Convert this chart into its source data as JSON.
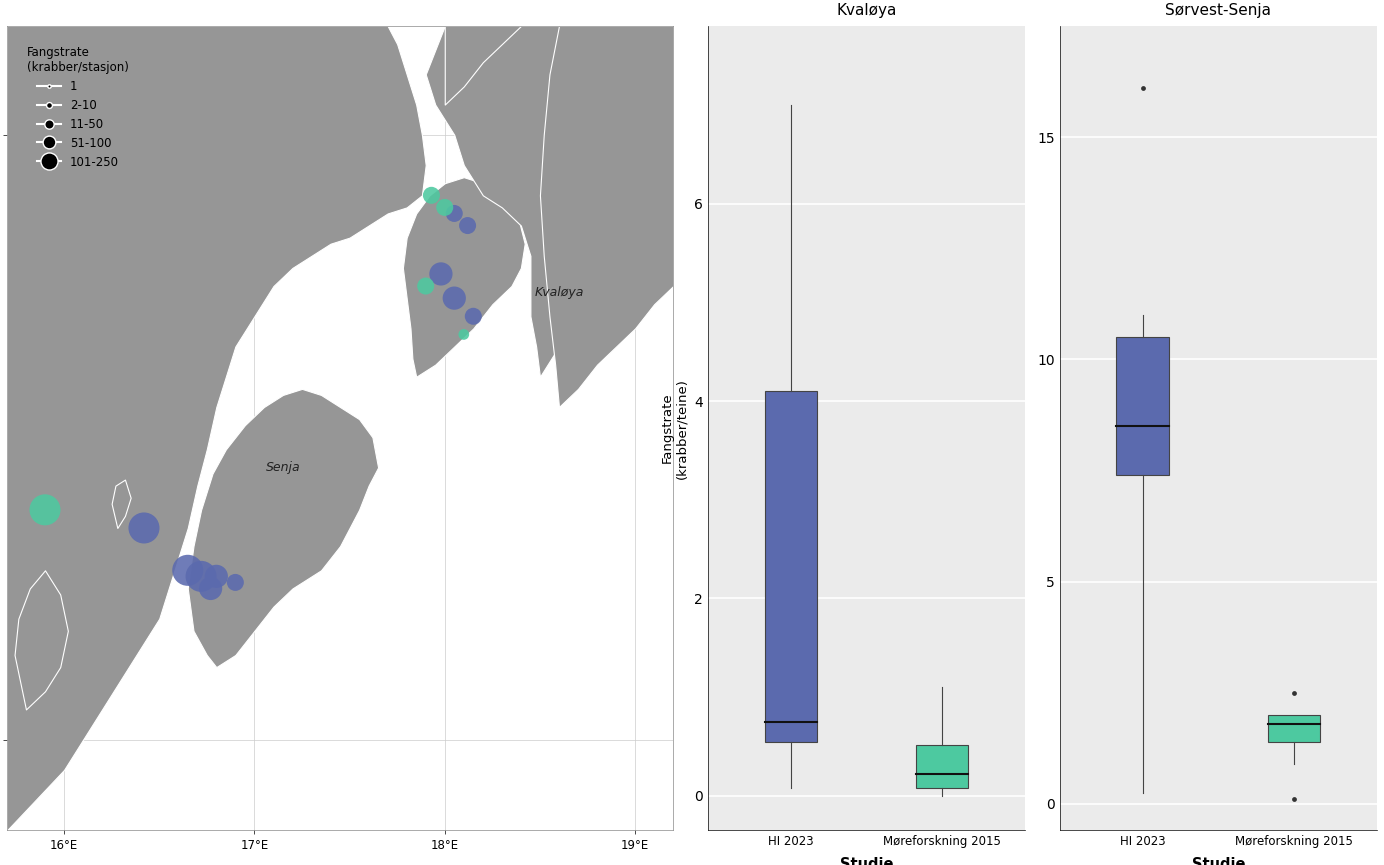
{
  "hi_color": "#5b6aae",
  "more_color": "#4dc9a0",
  "hi2023_points": [
    {
      "lon": 18.05,
      "lat": 69.87,
      "count": 30
    },
    {
      "lon": 18.12,
      "lat": 69.85,
      "count": 50
    },
    {
      "lon": 17.98,
      "lat": 69.77,
      "count": 80
    },
    {
      "lon": 18.05,
      "lat": 69.73,
      "count": 60
    },
    {
      "lon": 18.15,
      "lat": 69.7,
      "count": 40
    },
    {
      "lon": 16.42,
      "lat": 69.35,
      "count": 200
    },
    {
      "lon": 16.65,
      "lat": 69.28,
      "count": 120
    },
    {
      "lon": 16.72,
      "lat": 69.27,
      "count": 150
    },
    {
      "lon": 16.8,
      "lat": 69.27,
      "count": 100
    },
    {
      "lon": 16.77,
      "lat": 69.25,
      "count": 80
    },
    {
      "lon": 16.9,
      "lat": 69.26,
      "count": 30
    }
  ],
  "more2015_points": [
    {
      "lon": 17.93,
      "lat": 69.9,
      "count": 15
    },
    {
      "lon": 18.0,
      "lat": 69.88,
      "count": 20
    },
    {
      "lon": 17.9,
      "lat": 69.75,
      "count": 25
    },
    {
      "lon": 18.1,
      "lat": 69.67,
      "count": 10
    },
    {
      "lon": 15.9,
      "lat": 69.38,
      "count": 200
    }
  ],
  "lon_min": 15.7,
  "lon_max": 19.2,
  "lat_min": 68.85,
  "lat_max": 70.18,
  "size_legend_labels": [
    "1",
    "2-10",
    "11-50",
    "51-100",
    "101-250"
  ],
  "size_legend_counts": [
    1,
    5,
    30,
    75,
    175
  ],
  "kvaloya_hi2023": {
    "whisker_low": 0.08,
    "q1": 0.55,
    "median": 0.75,
    "q3": 4.1,
    "whisker_high": 7.0,
    "outliers": []
  },
  "kvaloya_more2015": {
    "whisker_low": 0.0,
    "q1": 0.08,
    "median": 0.22,
    "q3": 0.52,
    "whisker_high": 1.1,
    "outliers": []
  },
  "sorvest_hi2023": {
    "whisker_low": 0.25,
    "q1": 7.4,
    "median": 8.5,
    "q3": 10.5,
    "whisker_high": 11.0,
    "outliers": [
      16.1
    ]
  },
  "sorvest_more2015": {
    "whisker_low": 0.9,
    "q1": 1.4,
    "median": 1.8,
    "q3": 2.0,
    "whisker_high": 2.0,
    "outliers": [
      0.1,
      2.5
    ]
  },
  "ylabel": "Fangstrate\n(krabber/teine)",
  "xlabel": "Studie",
  "title_left": "Kvaløya",
  "title_right": "Sørvest-Senja",
  "xtick_labels": [
    "HI 2023",
    "Møreforskning 2015"
  ],
  "legend_title": "Fangstrate\n(krabber/stasjon)",
  "background_color": "#ffffff",
  "plot_bg_color": "#ebebeb",
  "grid_color": "#ffffff",
  "map_land_color": "#969696",
  "map_ocean_color": "#ffffff",
  "map_border_color": "#ffffff"
}
